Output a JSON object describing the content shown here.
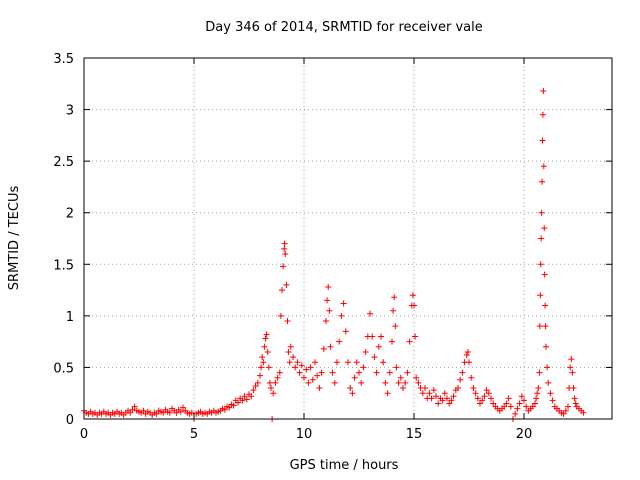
{
  "chart_data": {
    "type": "scatter",
    "title": "Day 346 of 2014, SRMTID for receiver vale",
    "xlabel": "GPS time / hours",
    "ylabel": "SRMTID / TECUs",
    "xlim": [
      0,
      24
    ],
    "ylim": [
      0,
      3.5
    ],
    "xticks": [
      0,
      5,
      10,
      15,
      20
    ],
    "xtick_labels": [
      "0",
      "5",
      "10",
      "15",
      "20"
    ],
    "yticks": [
      0,
      0.5,
      1,
      1.5,
      2,
      2.5,
      3,
      3.5
    ],
    "ytick_labels": [
      "0",
      "0.5",
      "1",
      "1.5",
      "2",
      "2.5",
      "3",
      "3.5"
    ],
    "grid": true,
    "marker": "+",
    "color": "#ff0000",
    "series": [
      {
        "name": "SRMTID",
        "points": [
          [
            0.0,
            0.08
          ],
          [
            0.1,
            0.06
          ],
          [
            0.2,
            0.05
          ],
          [
            0.3,
            0.07
          ],
          [
            0.4,
            0.05
          ],
          [
            0.5,
            0.06
          ],
          [
            0.6,
            0.04
          ],
          [
            0.7,
            0.06
          ],
          [
            0.8,
            0.05
          ],
          [
            0.9,
            0.07
          ],
          [
            1.0,
            0.05
          ],
          [
            1.1,
            0.06
          ],
          [
            1.2,
            0.04
          ],
          [
            1.3,
            0.06
          ],
          [
            1.4,
            0.05
          ],
          [
            1.5,
            0.07
          ],
          [
            1.6,
            0.05
          ],
          [
            1.7,
            0.06
          ],
          [
            1.8,
            0.04
          ],
          [
            1.9,
            0.06
          ],
          [
            2.0,
            0.08
          ],
          [
            2.1,
            0.06
          ],
          [
            2.2,
            0.09
          ],
          [
            2.3,
            0.12
          ],
          [
            2.4,
            0.08
          ],
          [
            2.5,
            0.07
          ],
          [
            2.6,
            0.06
          ],
          [
            2.7,
            0.08
          ],
          [
            2.8,
            0.05
          ],
          [
            2.9,
            0.07
          ],
          [
            3.0,
            0.06
          ],
          [
            3.1,
            0.04
          ],
          [
            3.2,
            0.06
          ],
          [
            3.3,
            0.05
          ],
          [
            3.4,
            0.08
          ],
          [
            3.5,
            0.07
          ],
          [
            3.6,
            0.06
          ],
          [
            3.7,
            0.09
          ],
          [
            3.8,
            0.07
          ],
          [
            3.9,
            0.06
          ],
          [
            4.0,
            0.1
          ],
          [
            4.1,
            0.08
          ],
          [
            4.2,
            0.06
          ],
          [
            4.3,
            0.09
          ],
          [
            4.4,
            0.07
          ],
          [
            4.5,
            0.11
          ],
          [
            4.6,
            0.08
          ],
          [
            4.7,
            0.06
          ],
          [
            4.8,
            0.05
          ],
          [
            4.9,
            0.06
          ],
          [
            5.0,
            0.0
          ],
          [
            5.1,
            0.05
          ],
          [
            5.2,
            0.06
          ],
          [
            5.3,
            0.07
          ],
          [
            5.4,
            0.05
          ],
          [
            5.5,
            0.06
          ],
          [
            5.6,
            0.05
          ],
          [
            5.7,
            0.07
          ],
          [
            5.8,
            0.06
          ],
          [
            5.9,
            0.08
          ],
          [
            6.0,
            0.06
          ],
          [
            6.1,
            0.07
          ],
          [
            6.2,
            0.08
          ],
          [
            6.3,
            0.1
          ],
          [
            6.4,
            0.09
          ],
          [
            6.5,
            0.12
          ],
          [
            6.6,
            0.11
          ],
          [
            6.7,
            0.14
          ],
          [
            6.8,
            0.13
          ],
          [
            6.9,
            0.18
          ],
          [
            7.0,
            0.16
          ],
          [
            7.1,
            0.2
          ],
          [
            7.2,
            0.18
          ],
          [
            7.3,
            0.22
          ],
          [
            7.4,
            0.19
          ],
          [
            7.5,
            0.24
          ],
          [
            7.6,
            0.22
          ],
          [
            7.7,
            0.28
          ],
          [
            7.8,
            0.32
          ],
          [
            7.9,
            0.35
          ],
          [
            8.0,
            0.42
          ],
          [
            8.05,
            0.5
          ],
          [
            8.1,
            0.6
          ],
          [
            8.15,
            0.55
          ],
          [
            8.2,
            0.7
          ],
          [
            8.25,
            0.78
          ],
          [
            8.3,
            0.82
          ],
          [
            8.35,
            0.65
          ],
          [
            8.4,
            0.5
          ],
          [
            8.45,
            0.35
          ],
          [
            8.5,
            0.3
          ],
          [
            8.55,
            0.0
          ],
          [
            8.6,
            0.25
          ],
          [
            8.7,
            0.35
          ],
          [
            8.8,
            0.4
          ],
          [
            8.9,
            0.45
          ],
          [
            8.95,
            1.0
          ],
          [
            9.0,
            1.25
          ],
          [
            9.05,
            1.48
          ],
          [
            9.1,
            1.65
          ],
          [
            9.12,
            1.7
          ],
          [
            9.15,
            1.6
          ],
          [
            9.2,
            1.3
          ],
          [
            9.25,
            0.95
          ],
          [
            9.3,
            0.65
          ],
          [
            9.35,
            0.55
          ],
          [
            9.4,
            0.7
          ],
          [
            9.5,
            0.6
          ],
          [
            9.6,
            0.5
          ],
          [
            9.7,
            0.55
          ],
          [
            9.8,
            0.45
          ],
          [
            9.9,
            0.52
          ],
          [
            10.0,
            0.4
          ],
          [
            10.1,
            0.48
          ],
          [
            10.2,
            0.35
          ],
          [
            10.3,
            0.5
          ],
          [
            10.4,
            0.38
          ],
          [
            10.5,
            0.55
          ],
          [
            10.6,
            0.42
          ],
          [
            10.7,
            0.3
          ],
          [
            10.8,
            0.45
          ],
          [
            10.9,
            0.68
          ],
          [
            11.0,
            0.95
          ],
          [
            11.05,
            1.15
          ],
          [
            11.1,
            1.28
          ],
          [
            11.15,
            1.05
          ],
          [
            11.2,
            0.7
          ],
          [
            11.3,
            0.45
          ],
          [
            11.4,
            0.35
          ],
          [
            11.5,
            0.55
          ],
          [
            11.6,
            0.75
          ],
          [
            11.7,
            1.0
          ],
          [
            11.8,
            1.12
          ],
          [
            11.9,
            0.85
          ],
          [
            12.0,
            0.55
          ],
          [
            12.1,
            0.3
          ],
          [
            12.2,
            0.25
          ],
          [
            12.3,
            0.4
          ],
          [
            12.4,
            0.55
          ],
          [
            12.5,
            0.45
          ],
          [
            12.6,
            0.35
          ],
          [
            12.7,
            0.5
          ],
          [
            12.8,
            0.65
          ],
          [
            12.9,
            0.8
          ],
          [
            13.0,
            1.02
          ],
          [
            13.1,
            0.8
          ],
          [
            13.2,
            0.6
          ],
          [
            13.3,
            0.45
          ],
          [
            13.4,
            0.7
          ],
          [
            13.5,
            0.8
          ],
          [
            13.6,
            0.55
          ],
          [
            13.7,
            0.35
          ],
          [
            13.8,
            0.25
          ],
          [
            13.9,
            0.45
          ],
          [
            14.0,
            0.75
          ],
          [
            14.05,
            1.05
          ],
          [
            14.1,
            1.18
          ],
          [
            14.15,
            0.9
          ],
          [
            14.2,
            0.5
          ],
          [
            14.3,
            0.35
          ],
          [
            14.4,
            0.4
          ],
          [
            14.5,
            0.3
          ],
          [
            14.6,
            0.35
          ],
          [
            14.7,
            0.45
          ],
          [
            14.8,
            0.75
          ],
          [
            14.9,
            1.1
          ],
          [
            14.95,
            1.2
          ],
          [
            15.0,
            1.1
          ],
          [
            15.05,
            0.8
          ],
          [
            15.1,
            0.4
          ],
          [
            15.2,
            0.35
          ],
          [
            15.3,
            0.3
          ],
          [
            15.4,
            0.25
          ],
          [
            15.5,
            0.3
          ],
          [
            15.6,
            0.2
          ],
          [
            15.7,
            0.25
          ],
          [
            15.8,
            0.2
          ],
          [
            15.9,
            0.28
          ],
          [
            16.0,
            0.22
          ],
          [
            16.1,
            0.15
          ],
          [
            16.2,
            0.2
          ],
          [
            16.3,
            0.18
          ],
          [
            16.4,
            0.25
          ],
          [
            16.5,
            0.2
          ],
          [
            16.6,
            0.15
          ],
          [
            16.7,
            0.18
          ],
          [
            16.8,
            0.22
          ],
          [
            16.9,
            0.28
          ],
          [
            17.0,
            0.3
          ],
          [
            17.1,
            0.38
          ],
          [
            17.2,
            0.45
          ],
          [
            17.3,
            0.55
          ],
          [
            17.4,
            0.62
          ],
          [
            17.45,
            0.65
          ],
          [
            17.5,
            0.55
          ],
          [
            17.6,
            0.4
          ],
          [
            17.7,
            0.3
          ],
          [
            17.8,
            0.25
          ],
          [
            17.9,
            0.2
          ],
          [
            18.0,
            0.15
          ],
          [
            18.1,
            0.18
          ],
          [
            18.2,
            0.22
          ],
          [
            18.3,
            0.28
          ],
          [
            18.4,
            0.25
          ],
          [
            18.5,
            0.2
          ],
          [
            18.6,
            0.15
          ],
          [
            18.7,
            0.12
          ],
          [
            18.8,
            0.1
          ],
          [
            18.9,
            0.08
          ],
          [
            19.0,
            0.1
          ],
          [
            19.1,
            0.12
          ],
          [
            19.2,
            0.15
          ],
          [
            19.3,
            0.2
          ],
          [
            19.4,
            0.12
          ],
          [
            19.5,
            0.0
          ],
          [
            19.6,
            0.05
          ],
          [
            19.7,
            0.1
          ],
          [
            19.8,
            0.15
          ],
          [
            19.9,
            0.22
          ],
          [
            20.0,
            0.18
          ],
          [
            20.1,
            0.12
          ],
          [
            20.2,
            0.08
          ],
          [
            20.3,
            0.1
          ],
          [
            20.4,
            0.12
          ],
          [
            20.5,
            0.15
          ],
          [
            20.55,
            0.2
          ],
          [
            20.6,
            0.25
          ],
          [
            20.65,
            0.3
          ],
          [
            20.7,
            0.45
          ],
          [
            20.72,
            0.9
          ],
          [
            20.74,
            1.2
          ],
          [
            20.76,
            1.5
          ],
          [
            20.78,
            1.75
          ],
          [
            20.8,
            2.0
          ],
          [
            20.82,
            2.3
          ],
          [
            20.84,
            2.7
          ],
          [
            20.86,
            2.95
          ],
          [
            20.88,
            3.18
          ],
          [
            20.9,
            2.45
          ],
          [
            20.92,
            1.85
          ],
          [
            20.94,
            1.4
          ],
          [
            20.96,
            1.1
          ],
          [
            20.98,
            0.9
          ],
          [
            21.0,
            0.7
          ],
          [
            21.05,
            0.5
          ],
          [
            21.1,
            0.35
          ],
          [
            21.2,
            0.25
          ],
          [
            21.3,
            0.18
          ],
          [
            21.4,
            0.12
          ],
          [
            21.5,
            0.1
          ],
          [
            21.6,
            0.08
          ],
          [
            21.7,
            0.06
          ],
          [
            21.8,
            0.05
          ],
          [
            21.9,
            0.08
          ],
          [
            22.0,
            0.12
          ],
          [
            22.05,
            0.3
          ],
          [
            22.1,
            0.5
          ],
          [
            22.15,
            0.58
          ],
          [
            22.2,
            0.45
          ],
          [
            22.25,
            0.3
          ],
          [
            22.3,
            0.2
          ],
          [
            22.35,
            0.15
          ],
          [
            22.4,
            0.12
          ],
          [
            22.5,
            0.1
          ],
          [
            22.6,
            0.08
          ],
          [
            22.7,
            0.06
          ]
        ]
      }
    ]
  }
}
